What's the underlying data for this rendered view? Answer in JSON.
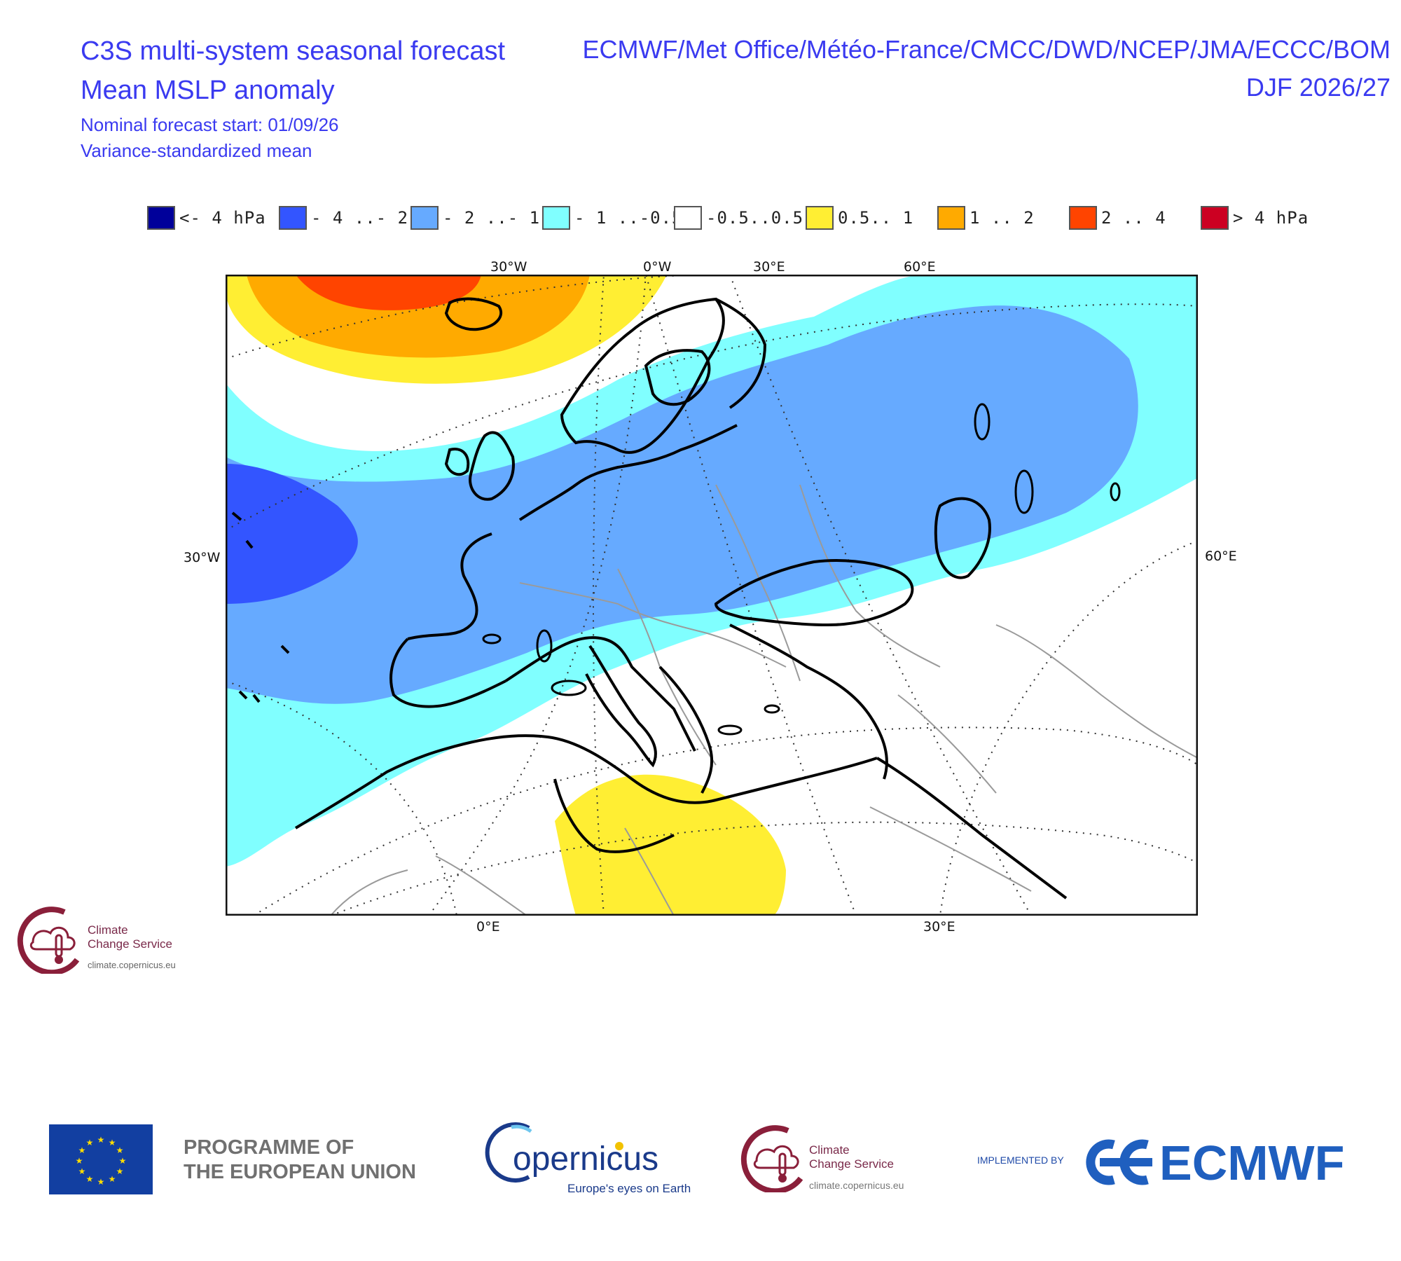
{
  "header": {
    "title_line1": "C3S multi-system seasonal forecast",
    "title_line2": "Mean MSLP anomaly",
    "start": "Nominal forecast start: 01/09/26",
    "method": "Variance-standardized mean",
    "centres": "ECMWF/Met Office/Météo-France/CMCC/DWD/NCEP/JMA/ECCC/BOM",
    "season": "DJF 2026/27"
  },
  "legend": [
    {
      "label": "<- 4 hPa",
      "color": "#00009a"
    },
    {
      "label": "- 4 ..- 2",
      "color": "#3355ff"
    },
    {
      "label": "- 2 ..- 1",
      "color": "#66aaff"
    },
    {
      "label": "- 1 ..-0.5",
      "color": "#80ffff"
    },
    {
      "label": "-0.5..0.5",
      "color": "#ffffff"
    },
    {
      "label": "0.5.. 1",
      "color": "#ffee33"
    },
    {
      "label": "1 .. 2",
      "color": "#ffaa00"
    },
    {
      "label": "2 .. 4",
      "color": "#ff4400"
    },
    {
      "label": ">  4 hPa",
      "color": "#cc0022"
    }
  ],
  "map_labels": {
    "top": [
      "30°W",
      "0°W",
      "30°E",
      "60°E"
    ],
    "left": "30°W",
    "right": "60°E",
    "bottom": [
      "0°E",
      "30°E"
    ]
  },
  "logos": {
    "ccs_line1": "Climate",
    "ccs_line2": "Change Service",
    "ccs_url": "climate.copernicus.eu",
    "eu_line1": "PROGRAMME OF",
    "eu_line2": "THE EUROPEAN UNION",
    "copernicus_name": "opernicus",
    "copernicus_tagline": "Europe's eyes on Earth",
    "implemented": "IMPLEMENTED BY",
    "ecmwf": "ECMWF"
  }
}
